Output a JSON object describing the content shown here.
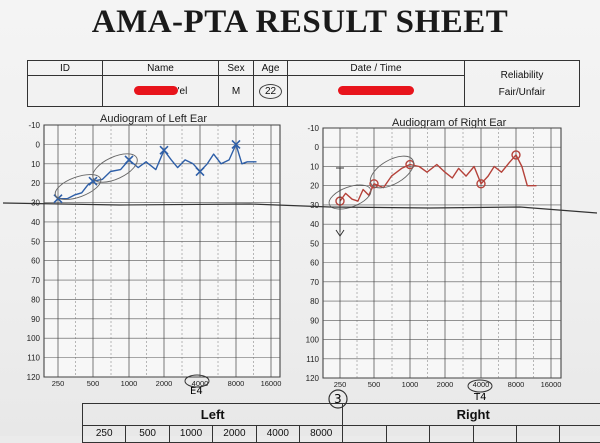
{
  "title": "AMA-PTA RESULT SHEET",
  "info_table": {
    "headers": {
      "id": "ID",
      "name": "Name",
      "sex": "Sex",
      "age": "Age",
      "date_time": "Date / Time",
      "reliability": "Reliability"
    },
    "values": {
      "name_tail": "'el",
      "sex": "M",
      "age": "22",
      "reliability": "Fair/Unfair"
    }
  },
  "left_chart_title": "Audiogram of Left Ear",
  "right_chart_title": "Audiogram of Right Ear",
  "colors": {
    "left": "#2e5fa8",
    "right": "#b5423a",
    "redaction": "#e8141c"
  },
  "annotations": {
    "left_4000": "E4",
    "right_250": "3",
    "right_4000": "T4"
  },
  "bottom_table": {
    "left": "Left",
    "right": "Right",
    "freqs": [
      "250",
      "500",
      "1000",
      "2000",
      "4000",
      "8000"
    ]
  },
  "chart_data": [
    {
      "type": "line",
      "title": "Audiogram of Left Ear",
      "x_ticks": [
        "250",
        "500",
        "1000",
        "2000",
        "4000",
        "8000",
        "16000"
      ],
      "y_ticks": [
        "-10",
        "0",
        "10",
        "20",
        "30",
        "40",
        "50",
        "60",
        "70",
        "80",
        "90",
        "100",
        "110",
        "120"
      ],
      "ylim": [
        -10,
        120
      ],
      "y_inverted": true,
      "grid": true,
      "marker": "x",
      "series": [
        {
          "x": [
            250,
            300,
            350,
            400,
            450,
            500,
            600,
            700,
            850,
            1000,
            1200,
            1400,
            1700,
            2000,
            2300,
            2600,
            3000,
            3500,
            4000,
            4600,
            5200,
            6000,
            7000,
            8000,
            9000,
            10000,
            12000
          ],
          "y": [
            28,
            28,
            26,
            25,
            21,
            19,
            18,
            14,
            13,
            8,
            12,
            9,
            13,
            3,
            8,
            12,
            8,
            10,
            14,
            10,
            5,
            10,
            8,
            0,
            10,
            9,
            9
          ]
        }
      ],
      "marker_points": {
        "x": [
          250,
          500,
          1000,
          2000,
          4000,
          8000
        ],
        "y": [
          28,
          19,
          8,
          3,
          14,
          0
        ]
      }
    },
    {
      "type": "line",
      "title": "Audiogram of Right Ear",
      "x_ticks": [
        "250",
        "500",
        "1000",
        "2000",
        "4000",
        "8000",
        "16000"
      ],
      "y_ticks": [
        "-10",
        "0",
        "10",
        "20",
        "30",
        "40",
        "50",
        "60",
        "70",
        "80",
        "90",
        "100",
        "110",
        "120"
      ],
      "ylim": [
        -10,
        120
      ],
      "y_inverted": true,
      "grid": true,
      "marker": "o",
      "series": [
        {
          "x": [
            250,
            280,
            320,
            360,
            400,
            450,
            500,
            600,
            700,
            850,
            1000,
            1200,
            1400,
            1700,
            2000,
            2300,
            2600,
            3000,
            3500,
            4000,
            4600,
            5200,
            6000,
            7000,
            8000,
            9000,
            10000,
            12000
          ],
          "y": [
            28,
            24,
            27,
            28,
            22,
            25,
            19,
            21,
            15,
            11,
            9,
            10,
            13,
            9,
            13,
            16,
            11,
            15,
            10,
            19,
            15,
            10,
            13,
            8,
            4,
            10,
            20,
            20
          ]
        }
      ],
      "marker_points": {
        "x": [
          250,
          500,
          1000,
          4000,
          8000
        ],
        "y": [
          28,
          19,
          9,
          19,
          4
        ]
      }
    }
  ]
}
